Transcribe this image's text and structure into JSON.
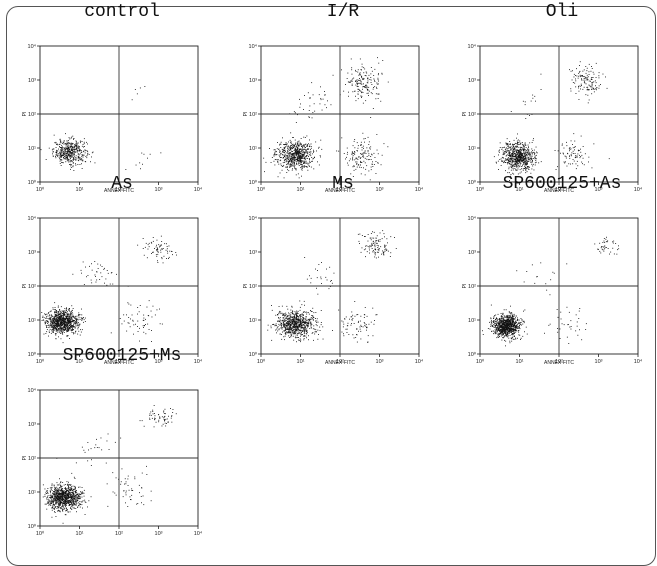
{
  "chart_data": [
    {
      "type": "scatter",
      "title": "control",
      "xlabel": "ANNEX-FITC",
      "ylabel": "PI",
      "xscale": "log",
      "yscale": "log",
      "xlim": [
        1,
        10000
      ],
      "ylim": [
        1,
        10000
      ],
      "quadrant_lines": {
        "x": 100,
        "y": 100
      },
      "x_ticks": [
        "10⁰",
        "10¹",
        "10²",
        "10³",
        "10⁴"
      ],
      "y_ticks": [
        "10⁰",
        "10¹",
        "10²",
        "10³",
        "10⁴"
      ],
      "x_tick_values": [
        1,
        10,
        100,
        1000,
        10000
      ],
      "y_tick_values": [
        1,
        10,
        100,
        1000,
        10000
      ],
      "clusters": [
        {
          "region": "lower-left",
          "center_log": [
            0.75,
            0.9
          ],
          "spread_log": [
            0.35,
            0.3
          ],
          "count": 450
        },
        {
          "region": "lower-right",
          "center_log": [
            2.4,
            0.6
          ],
          "spread_log": [
            0.4,
            0.4
          ],
          "count": 10
        },
        {
          "region": "upper-right",
          "center_log": [
            2.5,
            2.7
          ],
          "spread_log": [
            0.4,
            0.4
          ],
          "count": 5
        }
      ]
    },
    {
      "type": "scatter",
      "title": "I/R",
      "xlabel": "ANNEX-FITC",
      "ylabel": "PI",
      "xscale": "log",
      "yscale": "log",
      "xlim": [
        1,
        10000
      ],
      "ylim": [
        1,
        10000
      ],
      "quadrant_lines": {
        "x": 100,
        "y": 100
      },
      "x_ticks": [
        "10⁰",
        "10¹",
        "10²",
        "10³",
        "10⁴"
      ],
      "y_ticks": [
        "10⁰",
        "10¹",
        "10²",
        "10³",
        "10⁴"
      ],
      "x_tick_values": [
        1,
        10,
        100,
        1000,
        10000
      ],
      "y_tick_values": [
        1,
        10,
        100,
        1000,
        10000
      ],
      "clusters": [
        {
          "region": "lower-left",
          "center_log": [
            0.85,
            0.8
          ],
          "spread_log": [
            0.4,
            0.35
          ],
          "count": 650
        },
        {
          "region": "lower-right",
          "center_log": [
            2.5,
            0.8
          ],
          "spread_log": [
            0.4,
            0.45
          ],
          "count": 140
        },
        {
          "region": "upper-right",
          "center_log": [
            2.6,
            2.9
          ],
          "spread_log": [
            0.4,
            0.45
          ],
          "count": 170
        },
        {
          "region": "upper-left",
          "center_log": [
            1.3,
            2.3
          ],
          "spread_log": [
            0.5,
            0.5
          ],
          "count": 40
        }
      ]
    },
    {
      "type": "scatter",
      "title": "Oli",
      "xlabel": "ANNEX-FITC",
      "ylabel": "PI",
      "xscale": "log",
      "yscale": "log",
      "xlim": [
        1,
        10000
      ],
      "ylim": [
        1,
        10000
      ],
      "quadrant_lines": {
        "x": 100,
        "y": 100
      },
      "x_ticks": [
        "10⁰",
        "10¹",
        "10²",
        "10³",
        "10⁴"
      ],
      "y_ticks": [
        "10⁰",
        "10¹",
        "10²",
        "10³",
        "10⁴"
      ],
      "x_tick_values": [
        1,
        10,
        100,
        1000,
        10000
      ],
      "y_tick_values": [
        1,
        10,
        100,
        1000,
        10000
      ],
      "clusters": [
        {
          "region": "lower-left",
          "center_log": [
            0.95,
            0.75
          ],
          "spread_log": [
            0.35,
            0.35
          ],
          "count": 700
        },
        {
          "region": "lower-right",
          "center_log": [
            2.4,
            0.8
          ],
          "spread_log": [
            0.35,
            0.4
          ],
          "count": 80
        },
        {
          "region": "upper-right",
          "center_log": [
            2.7,
            3.0
          ],
          "spread_log": [
            0.35,
            0.45
          ],
          "count": 130
        },
        {
          "region": "upper-left",
          "center_log": [
            1.2,
            2.4
          ],
          "spread_log": [
            0.4,
            0.4
          ],
          "count": 15
        }
      ]
    },
    {
      "type": "scatter",
      "title": "As",
      "xlabel": "ANNEX-FITC",
      "ylabel": "PI",
      "xscale": "log",
      "yscale": "log",
      "xlim": [
        1,
        10000
      ],
      "ylim": [
        1,
        10000
      ],
      "quadrant_lines": {
        "x": 100,
        "y": 100
      },
      "x_ticks": [
        "10⁰",
        "10¹",
        "10²",
        "10³",
        "10⁴"
      ],
      "y_ticks": [
        "10⁰",
        "10¹",
        "10²",
        "10³",
        "10⁴"
      ],
      "x_tick_values": [
        1,
        10,
        100,
        1000,
        10000
      ],
      "y_tick_values": [
        1,
        10,
        100,
        1000,
        10000
      ],
      "clusters": [
        {
          "region": "lower-left",
          "center_log": [
            0.55,
            0.95
          ],
          "spread_log": [
            0.35,
            0.3
          ],
          "count": 900
        },
        {
          "region": "lower-right",
          "center_log": [
            2.4,
            1.0
          ],
          "spread_log": [
            0.45,
            0.45
          ],
          "count": 60
        },
        {
          "region": "upper-right",
          "center_log": [
            3.0,
            3.1
          ],
          "spread_log": [
            0.4,
            0.3
          ],
          "count": 70
        },
        {
          "region": "upper-left",
          "center_log": [
            1.4,
            2.3
          ],
          "spread_log": [
            0.45,
            0.4
          ],
          "count": 40
        }
      ]
    },
    {
      "type": "scatter",
      "title": "Ms",
      "xlabel": "ANNEX-FITC",
      "ylabel": "PI",
      "xscale": "log",
      "yscale": "log",
      "xlim": [
        1,
        10000
      ],
      "ylim": [
        1,
        10000
      ],
      "quadrant_lines": {
        "x": 100,
        "y": 100
      },
      "x_ticks": [
        "10⁰",
        "10¹",
        "10²",
        "10³",
        "10⁴"
      ],
      "y_ticks": [
        "10⁰",
        "10¹",
        "10²",
        "10³",
        "10⁴"
      ],
      "x_tick_values": [
        1,
        10,
        100,
        1000,
        10000
      ],
      "y_tick_values": [
        1,
        10,
        100,
        1000,
        10000
      ],
      "clusters": [
        {
          "region": "lower-left",
          "center_log": [
            0.85,
            0.9
          ],
          "spread_log": [
            0.4,
            0.35
          ],
          "count": 750
        },
        {
          "region": "lower-right",
          "center_log": [
            2.4,
            0.9
          ],
          "spread_log": [
            0.4,
            0.45
          ],
          "count": 80
        },
        {
          "region": "upper-right",
          "center_log": [
            2.9,
            3.2
          ],
          "spread_log": [
            0.35,
            0.3
          ],
          "count": 110
        },
        {
          "region": "upper-left",
          "center_log": [
            1.5,
            2.3
          ],
          "spread_log": [
            0.4,
            0.4
          ],
          "count": 25
        }
      ]
    },
    {
      "type": "scatter",
      "title": "SP600125+As",
      "xlabel": "ANNEX-FITC",
      "ylabel": "PI",
      "xscale": "log",
      "yscale": "log",
      "xlim": [
        1,
        10000
      ],
      "ylim": [
        1,
        10000
      ],
      "quadrant_lines": {
        "x": 100,
        "y": 100
      },
      "x_ticks": [
        "10⁰",
        "10¹",
        "10²",
        "10³",
        "10⁴"
      ],
      "y_ticks": [
        "10⁰",
        "10¹",
        "10²",
        "10³",
        "10⁴"
      ],
      "x_tick_values": [
        1,
        10,
        100,
        1000,
        10000
      ],
      "y_tick_values": [
        1,
        10,
        100,
        1000,
        10000
      ],
      "clusters": [
        {
          "region": "lower-left",
          "center_log": [
            0.65,
            0.85
          ],
          "spread_log": [
            0.28,
            0.28
          ],
          "count": 900
        },
        {
          "region": "lower-right",
          "center_log": [
            2.3,
            0.8
          ],
          "spread_log": [
            0.45,
            0.45
          ],
          "count": 35
        },
        {
          "region": "upper-right",
          "center_log": [
            3.2,
            3.2
          ],
          "spread_log": [
            0.25,
            0.25
          ],
          "count": 40
        },
        {
          "region": "upper-left",
          "center_log": [
            1.5,
            2.3
          ],
          "spread_log": [
            0.45,
            0.45
          ],
          "count": 15
        }
      ]
    },
    {
      "type": "scatter",
      "title": "SP600125+Ms",
      "xlabel": "",
      "ylabel": "PI",
      "xscale": "log",
      "yscale": "log",
      "xlim": [
        1,
        10000
      ],
      "ylim": [
        1,
        10000
      ],
      "quadrant_lines": {
        "x": 100,
        "y": 100
      },
      "x_ticks": [
        "10⁰",
        "10¹",
        "10²",
        "10³",
        "10⁴"
      ],
      "y_ticks": [
        "10⁰",
        "10¹",
        "10²",
        "10³",
        "10⁴"
      ],
      "x_tick_values": [
        1,
        10,
        100,
        1000,
        10000
      ],
      "y_tick_values": [
        1,
        10,
        100,
        1000,
        10000
      ],
      "clusters": [
        {
          "region": "lower-left",
          "center_log": [
            0.6,
            0.85
          ],
          "spread_log": [
            0.35,
            0.3
          ],
          "count": 900
        },
        {
          "region": "lower-right",
          "center_log": [
            2.3,
            1.1
          ],
          "spread_log": [
            0.45,
            0.45
          ],
          "count": 50
        },
        {
          "region": "upper-right",
          "center_log": [
            3.0,
            3.2
          ],
          "spread_log": [
            0.4,
            0.25
          ],
          "count": 60
        },
        {
          "region": "upper-left",
          "center_log": [
            1.4,
            2.3
          ],
          "spread_log": [
            0.45,
            0.45
          ],
          "count": 25
        }
      ]
    }
  ]
}
